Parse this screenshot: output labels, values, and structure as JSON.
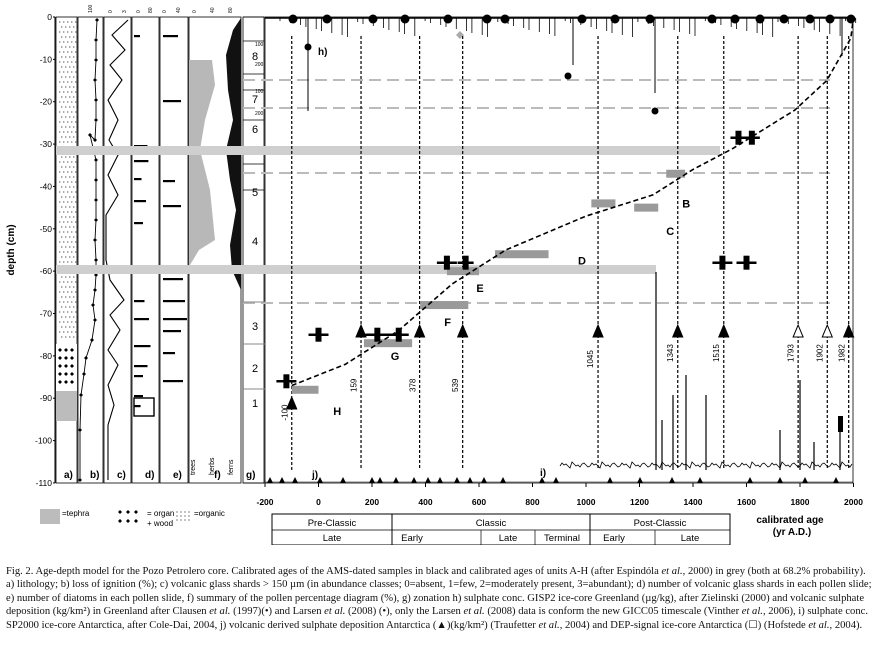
{
  "figure": {
    "ylabel": "depth (cm)",
    "ytick_labels": [
      "0",
      "-10",
      "-20",
      "-30",
      "-40",
      "-50",
      "-60",
      "-70",
      "-80",
      "-90",
      "-100",
      "-110"
    ],
    "xlabel_line1": "calibrated age",
    "xlabel_line2": "(yr A.D.)",
    "xtick_labels": [
      "-200",
      "0",
      "200",
      "400",
      "600",
      "800",
      "1000",
      "1200",
      "1400",
      "1600",
      "1800",
      "2000"
    ],
    "panel_letters": [
      "a)",
      "b)",
      "c)",
      "d)",
      "e)",
      "f)",
      "g)",
      "j)",
      "i)",
      "h)"
    ],
    "pollen_labels": [
      "trees",
      "herbs",
      "ferns"
    ],
    "zones": [
      "1",
      "2",
      "3",
      "4",
      "5",
      "6",
      "7",
      "8"
    ],
    "unit_labels": [
      "B",
      "C",
      "D",
      "E",
      "F",
      "G",
      "H"
    ],
    "arrow_year_labels": [
      "-100",
      "159",
      "378",
      "539",
      "1045",
      "1343",
      "1515",
      "1793",
      "1902",
      "1982"
    ],
    "small_axis_labels": [
      "100",
      "200",
      "100",
      "200"
    ],
    "periods": {
      "preclassic": {
        "name": "Pre-Classic",
        "sub": "Late"
      },
      "classic": {
        "name": "Classic",
        "subs": [
          "Early",
          "Late",
          "Terminal"
        ]
      },
      "postclassic": {
        "name": "Post-Classic",
        "subs": [
          "Early",
          "Late"
        ]
      }
    },
    "legend": {
      "tephra": "=tephra",
      "organic_wood_1": "= organic",
      "organic_wood_2": "+ wood",
      "organic": "=organic"
    }
  },
  "caption": {
    "p1": "Fig. 2. Age-depth model for the Pozo Petrolero core. Calibrated ages of the AMS-dated samples in black and calibrated ages of units A-H (after Espindóla ",
    "p1_it": "et al.",
    "p1b": ", 2000) in grey (both at 68.2% probability). a) lithology; b) loss of ignition (%); c) volcanic glass shards > 150 µm (in abundance classes; 0=absent, 1=few, 2=moderately present, 3=abundant); d) number of volcanic glass shards in each pollen slide; e) number of diatoms in each pollen slide, f) summary of the pollen percentage diagram (%), g) zonation h) sulphate conc. GISP2 ice-core Greenland (µg/kg), after Zielinski (2000) and volcanic sulphate deposition (kg/km²) in Greenland after Clausen ",
    "p2_it": "et al.",
    "p2": " (1997)(•) and Larsen ",
    "p3_it": "et al.",
    "p3": " (2008) (•), only the Larsen ",
    "p4_it": "et al.",
    "p4": " (2008) data is conform the new GICC05 timescale (Vinther ",
    "p5_it": "et al.",
    "p5": ", 2006), i) sulphate conc. SP2000 ice-core Antarctica, after Cole-Dai, 2004, j) volcanic derived sulphate deposition Antarctica (▲)(kg/km²) (Traufetter ",
    "p6_it": "et al.",
    "p6": ", 2004) and DEP-signal ice-core Antarctica (☐) (Hofstede ",
    "p7_it": "et al.",
    "p7": ", 2004)."
  }
}
